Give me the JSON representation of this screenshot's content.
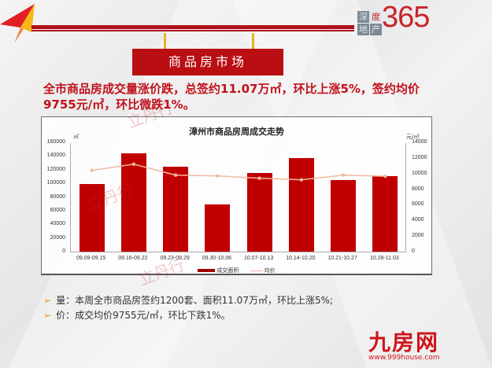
{
  "header": {
    "logo_365": {
      "box_chars": [
        "深",
        "度",
        "地",
        "产"
      ],
      "number": "365"
    },
    "banner_title": "商品房市场"
  },
  "headline": {
    "line1": "全市商品房成交量涨价跌，总签约11.07万㎡，环比上涨5%，签约均价",
    "line2": "9755元/㎡，环比微跌1%。"
  },
  "chart_data": {
    "type": "bar",
    "title": "漳州市商品房周成交走势",
    "categories": [
      "09.09-09.15",
      "09.16-09.22",
      "09.23-09.29",
      "09.30-10.06",
      "10.07-10.13",
      "10.14-10.20",
      "10.21-10.27",
      "10.28-11.03"
    ],
    "series": [
      {
        "name": "成交面积",
        "type": "bar",
        "axis": "left",
        "color": "#c00000",
        "values": [
          99000,
          144000,
          124000,
          69000,
          115000,
          137000,
          105000,
          110700
        ]
      },
      {
        "name": "均价",
        "type": "line",
        "axis": "right",
        "color": "#f2b8a0",
        "values": [
          10500,
          11300,
          9900,
          9800,
          9500,
          9300,
          9900,
          9755
        ]
      }
    ],
    "ylabel_left": "㎡",
    "ylabel_right": "元/㎡",
    "ylim_left": [
      0,
      160000
    ],
    "ylim_right": [
      0,
      14000
    ],
    "yticks_left": [
      "160000",
      "140000",
      "120000",
      "100000",
      "80000",
      "60000",
      "40000",
      "20000",
      "0"
    ],
    "yticks_right": [
      "14000",
      "12000",
      "10000",
      "8000",
      "6000",
      "4000",
      "2000",
      "0"
    ],
    "legend_position": "bottom",
    "grid": false
  },
  "bullets": [
    "量：本周全市商品房签约1200套、面积11.07万㎡，环比上涨5%;",
    "价：成交均价9755元/㎡，环比下跌1%。"
  ],
  "watermark": "立丹行",
  "footer_logo": {
    "name": "九房网",
    "url": "www.999house.com"
  }
}
